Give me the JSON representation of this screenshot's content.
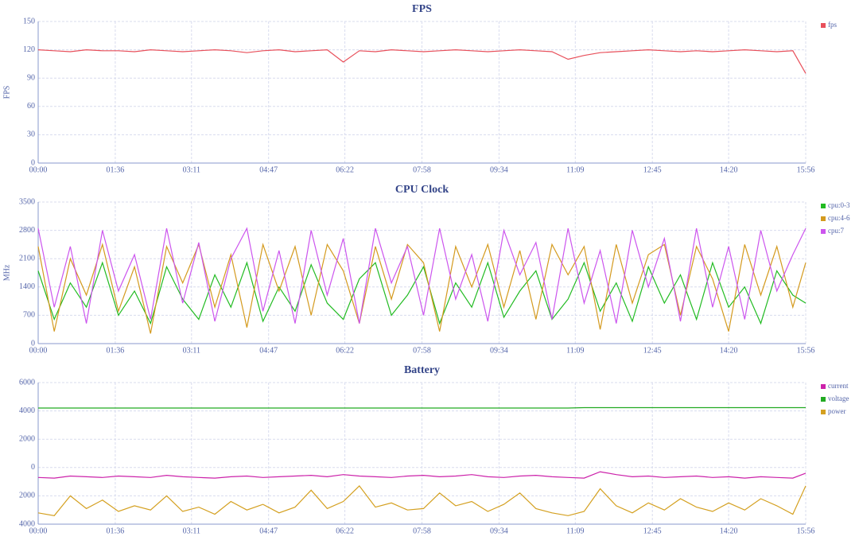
{
  "chart_data": [
    {
      "type": "line",
      "title": "FPS",
      "y_label": "FPS",
      "x": [
        0,
        20,
        40,
        60,
        80,
        100,
        120,
        140,
        160,
        180,
        200,
        220,
        240,
        260,
        280,
        300,
        320,
        340,
        360,
        380,
        400,
        420,
        440,
        460,
        480,
        500,
        520,
        540,
        560,
        580,
        600,
        620,
        640,
        660,
        680,
        700,
        720,
        740,
        760,
        780,
        800,
        820,
        840,
        860,
        880,
        900,
        920,
        940,
        956
      ],
      "xlim": [
        0,
        956
      ],
      "xticks": [
        {
          "value": 0,
          "label": "00:00"
        },
        {
          "value": 96,
          "label": "01:36"
        },
        {
          "value": 191,
          "label": "03:11"
        },
        {
          "value": 287,
          "label": "04:47"
        },
        {
          "value": 382,
          "label": "06:22"
        },
        {
          "value": 478,
          "label": "07:58"
        },
        {
          "value": 574,
          "label": "09:34"
        },
        {
          "value": 669,
          "label": "11:09"
        },
        {
          "value": 765,
          "label": "12:45"
        },
        {
          "value": 860,
          "label": "14:20"
        },
        {
          "value": 956,
          "label": "15:56"
        }
      ],
      "ylim": [
        0,
        150
      ],
      "yticks": [
        0,
        30,
        60,
        90,
        120,
        150
      ],
      "grid": true,
      "legend": "upper right",
      "series": [
        {
          "name": "fps",
          "color": "#e8505b",
          "values": [
            120,
            119,
            118,
            120,
            119,
            119,
            118,
            120,
            119,
            118,
            119,
            120,
            119,
            117,
            119,
            120,
            118,
            119,
            120,
            107,
            119,
            118,
            120,
            119,
            118,
            119,
            120,
            119,
            118,
            119,
            120,
            119,
            118,
            110,
            114,
            117,
            118,
            119,
            120,
            119,
            118,
            119,
            118,
            119,
            120,
            119,
            118,
            119,
            95
          ]
        }
      ]
    },
    {
      "type": "line",
      "title": "CPU Clock",
      "y_label": "MHz",
      "x": [
        0,
        20,
        40,
        60,
        80,
        100,
        120,
        140,
        160,
        180,
        200,
        220,
        240,
        260,
        280,
        300,
        320,
        340,
        360,
        380,
        400,
        420,
        440,
        460,
        480,
        500,
        520,
        540,
        560,
        580,
        600,
        620,
        640,
        660,
        680,
        700,
        720,
        740,
        760,
        780,
        800,
        820,
        840,
        860,
        880,
        900,
        920,
        940,
        956
      ],
      "xlim": [
        0,
        956
      ],
      "xticks": [
        {
          "value": 0,
          "label": "00:00"
        },
        {
          "value": 96,
          "label": "01:36"
        },
        {
          "value": 191,
          "label": "03:11"
        },
        {
          "value": 287,
          "label": "04:47"
        },
        {
          "value": 382,
          "label": "06:22"
        },
        {
          "value": 478,
          "label": "07:58"
        },
        {
          "value": 574,
          "label": "09:34"
        },
        {
          "value": 669,
          "label": "11:09"
        },
        {
          "value": 765,
          "label": "12:45"
        },
        {
          "value": 860,
          "label": "14:20"
        },
        {
          "value": 956,
          "label": "15:56"
        }
      ],
      "ylim": [
        0,
        3500
      ],
      "yticks": [
        0,
        700,
        1400,
        2100,
        2800,
        3500
      ],
      "grid": true,
      "legend": "upper right",
      "series": [
        {
          "name": "cpu:0-3",
          "color": "#22bb22",
          "values": [
            1800,
            600,
            1500,
            900,
            2000,
            700,
            1300,
            500,
            1900,
            1100,
            600,
            1700,
            900,
            2000,
            550,
            1400,
            800,
            1950,
            1000,
            600,
            1600,
            2000,
            700,
            1200,
            1900,
            500,
            1500,
            900,
            2000,
            650,
            1300,
            1800,
            600,
            1100,
            2000,
            800,
            1500,
            550,
            1900,
            1000,
            1700,
            600,
            2000,
            900,
            1400,
            500,
            1800,
            1200,
            1000
          ]
        },
        {
          "name": "cpu:4-6",
          "color": "#d49a1e",
          "values": [
            2400,
            300,
            2100,
            1200,
            2450,
            800,
            1900,
            250,
            2400,
            1500,
            2450,
            900,
            2200,
            400,
            2450,
            1300,
            2400,
            700,
            2450,
            1800,
            500,
            2400,
            1100,
            2450,
            2000,
            300,
            2400,
            1400,
            2450,
            900,
            2300,
            600,
            2450,
            1700,
            2400,
            350,
            2450,
            1000,
            2200,
            2450,
            700,
            2400,
            1600,
            300,
            2450,
            1200,
            2400,
            900,
            2000
          ]
        },
        {
          "name": "cpu:7",
          "color": "#cc55ee",
          "values": [
            2850,
            900,
            2400,
            500,
            2800,
            1300,
            2200,
            600,
            2850,
            1000,
            2500,
            550,
            2100,
            2850,
            800,
            2300,
            500,
            2800,
            1200,
            2600,
            500,
            2850,
            1500,
            2400,
            700,
            2850,
            1100,
            2200,
            550,
            2800,
            1700,
            2500,
            600,
            2850,
            1000,
            2300,
            500,
            2800,
            1400,
            2600,
            550,
            2850,
            900,
            2400,
            600,
            2800,
            1300,
            2200,
            2850
          ]
        }
      ]
    },
    {
      "type": "line",
      "title": "Battery",
      "x": [
        0,
        20,
        40,
        60,
        80,
        100,
        120,
        140,
        160,
        180,
        200,
        220,
        240,
        260,
        280,
        300,
        320,
        340,
        360,
        380,
        400,
        420,
        440,
        460,
        480,
        500,
        520,
        540,
        560,
        580,
        600,
        620,
        640,
        660,
        680,
        700,
        720,
        740,
        760,
        780,
        800,
        820,
        840,
        860,
        880,
        900,
        920,
        940,
        956
      ],
      "xlim": [
        0,
        956
      ],
      "xticks": [
        {
          "value": 0,
          "label": "00:00"
        },
        {
          "value": 96,
          "label": "01:36"
        },
        {
          "value": 191,
          "label": "03:11"
        },
        {
          "value": 287,
          "label": "04:47"
        },
        {
          "value": 382,
          "label": "06:22"
        },
        {
          "value": 478,
          "label": "07:58"
        },
        {
          "value": 574,
          "label": "09:34"
        },
        {
          "value": 669,
          "label": "11:09"
        },
        {
          "value": 765,
          "label": "12:45"
        },
        {
          "value": 860,
          "label": "14:20"
        },
        {
          "value": 956,
          "label": "15:56"
        }
      ],
      "ylim": [
        -4000,
        6000
      ],
      "yticks": [
        {
          "value": -4000,
          "label": "4000"
        },
        {
          "value": -2000,
          "label": "2000"
        },
        0,
        2000,
        4000,
        6000
      ],
      "grid": true,
      "legend": "upper right",
      "series": [
        {
          "name": "current",
          "color": "#cc22aa",
          "values": [
            -700,
            -750,
            -600,
            -650,
            -700,
            -600,
            -650,
            -700,
            -550,
            -650,
            -700,
            -750,
            -650,
            -600,
            -700,
            -650,
            -600,
            -550,
            -650,
            -500,
            -600,
            -650,
            -700,
            -600,
            -550,
            -650,
            -600,
            -500,
            -650,
            -700,
            -600,
            -550,
            -650,
            -700,
            -750,
            -300,
            -500,
            -650,
            -600,
            -700,
            -650,
            -600,
            -700,
            -650,
            -750,
            -650,
            -700,
            -750,
            -400
          ]
        },
        {
          "name": "voltage",
          "color": "#22aa22",
          "values": [
            4200,
            4200,
            4200,
            4200,
            4200,
            4200,
            4200,
            4200,
            4200,
            4200,
            4200,
            4200,
            4200,
            4200,
            4200,
            4200,
            4200,
            4200,
            4200,
            4200,
            4200,
            4200,
            4200,
            4200,
            4200,
            4200,
            4200,
            4200,
            4200,
            4200,
            4200,
            4200,
            4200,
            4200,
            4230,
            4230,
            4230,
            4230,
            4230,
            4230,
            4230,
            4230,
            4230,
            4230,
            4230,
            4230,
            4230,
            4230,
            4230
          ]
        },
        {
          "name": "power",
          "color": "#d4a020",
          "values": [
            -3200,
            -3400,
            -2000,
            -2900,
            -2300,
            -3100,
            -2700,
            -3000,
            -2000,
            -3100,
            -2800,
            -3300,
            -2400,
            -3000,
            -2600,
            -3200,
            -2800,
            -1600,
            -2900,
            -2400,
            -1300,
            -2800,
            -2500,
            -3000,
            -2900,
            -1800,
            -2700,
            -2400,
            -3100,
            -2600,
            -1800,
            -2900,
            -3200,
            -3400,
            -3100,
            -1500,
            -2700,
            -3200,
            -2500,
            -3000,
            -2200,
            -2800,
            -3100,
            -2500,
            -3000,
            -2200,
            -2700,
            -3300,
            -1300
          ]
        }
      ]
    }
  ]
}
